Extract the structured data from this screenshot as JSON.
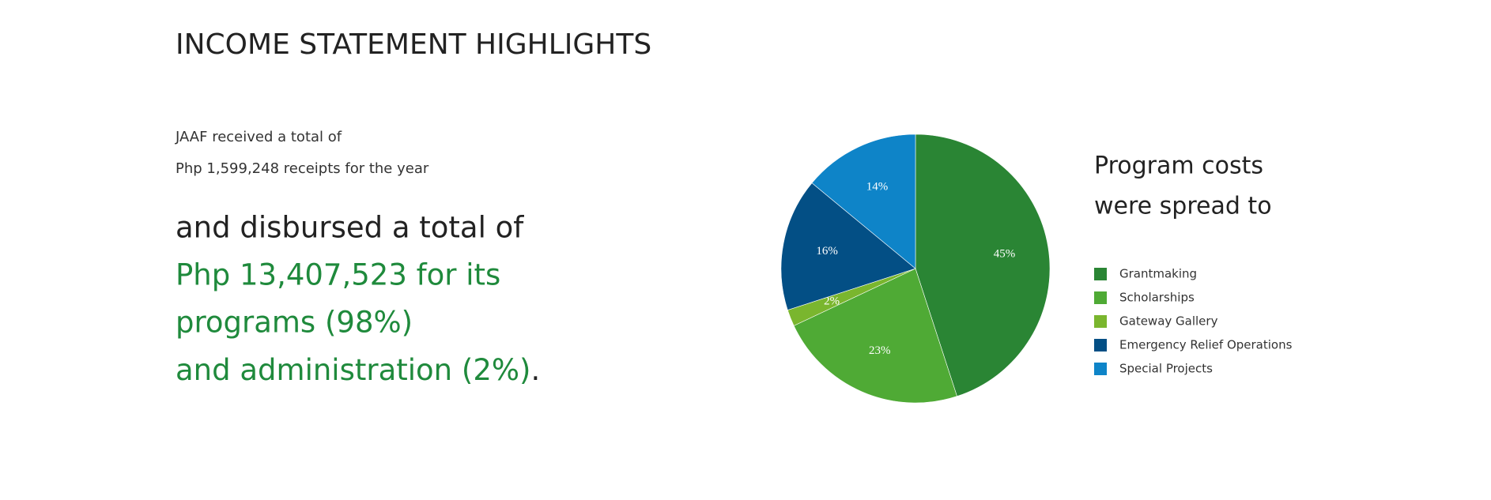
{
  "header": {
    "title": "INCOME STATEMENT HIGHLIGHTS"
  },
  "intro": [
    "JAAF received a total of",
    "Php 1,599,248 receipts for the year"
  ],
  "disbursed": {
    "lead": "and disbursed a total of",
    "lines": [
      "Php 13,407,523 for its",
      "programs (98%)",
      "and administration (2%)"
    ],
    "suffix": "."
  },
  "chart_data": {
    "type": "pie",
    "title": [
      "Program costs",
      "were spread to"
    ],
    "categories": [
      "Grantmaking",
      "Scholarships",
      "Gateway Gallery",
      "Emergency Relief Operations",
      "Special Projects"
    ],
    "values": [
      45,
      23,
      2,
      16,
      14
    ],
    "value_labels": [
      "45%",
      "23%",
      "2%",
      "16%",
      "14%"
    ],
    "colors": [
      "#2a8534",
      "#4faa35",
      "#7ab62e",
      "#034f85",
      "#0e84c8"
    ],
    "legend": "right"
  }
}
